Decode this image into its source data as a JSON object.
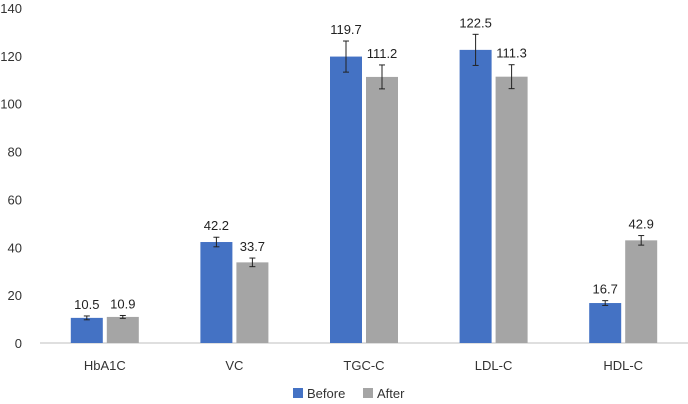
{
  "chart_data": {
    "type": "bar",
    "categories": [
      "HbA1C",
      "VC",
      "TGC-C",
      "LDL-C",
      "HDL-C"
    ],
    "series": [
      {
        "name": "Before",
        "color": "#4472C4",
        "values": [
          10.5,
          42.2,
          119.7,
          122.5,
          16.7
        ],
        "value_labels": [
          "10.5",
          "42.2",
          "119.7",
          "122.5",
          "16.7"
        ],
        "error": [
          0.8,
          2.0,
          6.5,
          6.5,
          1.0
        ]
      },
      {
        "name": "After",
        "color": "#A5A5A5",
        "values": [
          10.9,
          33.7,
          111.2,
          111.3,
          42.9
        ],
        "value_labels": [
          "10.9",
          "33.7",
          "111.2",
          "111.3",
          "42.9"
        ],
        "error": [
          0.6,
          1.8,
          5.0,
          5.0,
          2.0
        ]
      }
    ],
    "y_ticks": [
      "0",
      "20",
      "40",
      "60",
      "80",
      "100",
      "120",
      "140"
    ],
    "ylim": [
      0,
      140
    ],
    "grid": false,
    "legend_position": "bottom-center"
  }
}
